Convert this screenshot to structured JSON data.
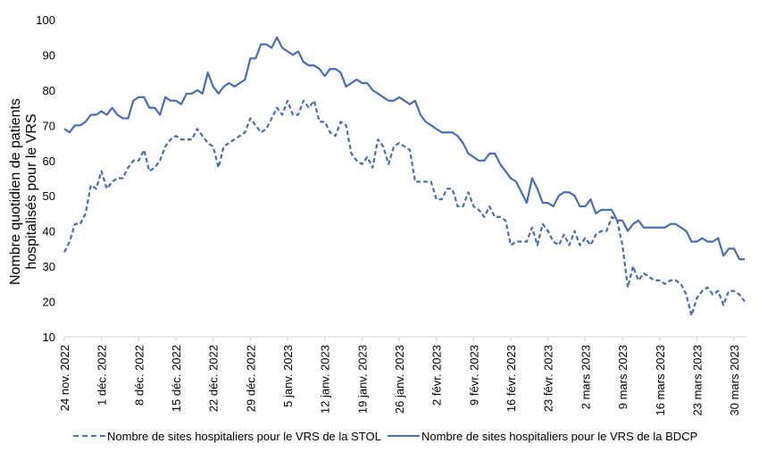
{
  "chart_data": {
    "type": "line",
    "ylabel_lines": [
      "Nombre quotidien de patients",
      "hospitalisés pour le VRS"
    ],
    "ylim": [
      10,
      100
    ],
    "yticks": [
      10,
      20,
      30,
      40,
      50,
      60,
      70,
      80,
      90,
      100
    ],
    "grid": false,
    "legend_placement": "bottom",
    "x_tick_labels": [
      "24 nov. 2022",
      "1 déc. 2022",
      "8 déc. 2022",
      "15 déc. 2022",
      "22 déc. 2022",
      "29 déc. 2022",
      "5 janv. 2023",
      "12 janv. 2023",
      "19 janv. 2023",
      "26 janv. 2023",
      "2 févr. 2023",
      "9 févr. 2023",
      "16 févr. 2023",
      "23 févr. 2023",
      "2 mars 2023",
      "9 mars 2023",
      "16 mars 2023",
      "23 mars 2023",
      "30 mars 2023"
    ],
    "x_start": "24 nov. 2022",
    "x_end": "31 mars 2023",
    "series": [
      {
        "name": "Nombre de sites hospitaliers pour le VRS de la STOL",
        "style": "dashed",
        "color": "#4a6db5",
        "values": [
          34,
          37,
          42,
          42,
          45,
          53,
          52,
          57,
          52,
          54,
          55,
          55,
          58,
          60,
          60,
          63,
          57,
          58,
          60,
          64,
          66,
          67,
          66,
          66,
          66,
          69,
          67,
          65,
          64,
          58,
          64,
          65,
          66,
          67,
          68,
          72,
          70,
          68,
          69,
          72,
          75,
          73,
          77,
          73,
          73,
          77,
          75,
          77,
          71,
          71,
          68,
          67,
          71,
          70,
          62,
          60,
          59,
          61,
          58,
          66,
          64,
          59,
          64,
          65,
          64,
          63,
          54,
          54,
          54,
          54,
          49,
          49,
          52,
          52,
          47,
          47,
          51,
          47,
          46,
          44,
          47,
          44,
          44,
          43,
          36,
          37,
          37,
          37,
          41,
          36,
          42,
          40,
          37,
          36,
          39,
          36,
          40,
          36,
          38,
          36,
          39,
          40,
          40,
          44,
          43,
          36,
          24,
          30,
          26,
          28,
          27,
          26,
          26,
          25,
          26,
          26,
          25,
          22,
          16,
          21,
          23,
          24,
          22,
          23,
          19,
          23,
          23,
          22,
          20
        ]
      },
      {
        "name": "Nombre de sites hospitaliers pour le VRS de la BDCP",
        "style": "solid",
        "color": "#4a6db5",
        "values": [
          69,
          68,
          70,
          70,
          71,
          73,
          73,
          74,
          73,
          75,
          73,
          72,
          72,
          77,
          78,
          78,
          75,
          75,
          73,
          78,
          77,
          77,
          76,
          79,
          79,
          80,
          79,
          85,
          81,
          79,
          81,
          82,
          81,
          82,
          83,
          89,
          89,
          93,
          93,
          92,
          95,
          92,
          91,
          90,
          91,
          88,
          87,
          87,
          86,
          84,
          86,
          86,
          85,
          81,
          82,
          83,
          82,
          82,
          80,
          79,
          78,
          77,
          77,
          78,
          77,
          76,
          77,
          73,
          71,
          70,
          69,
          68,
          68,
          68,
          67,
          65,
          62,
          61,
          60,
          60,
          62,
          62,
          59,
          57,
          55,
          54,
          51,
          48,
          55,
          52,
          48,
          48,
          47,
          50,
          51,
          51,
          50,
          47,
          47,
          49,
          45,
          46,
          46,
          46,
          43,
          43,
          40,
          42,
          43,
          41,
          41,
          41,
          41,
          41,
          42,
          42,
          41,
          40,
          37,
          37,
          38,
          37,
          37,
          38,
          33,
          35,
          35,
          32,
          32
        ]
      }
    ]
  }
}
